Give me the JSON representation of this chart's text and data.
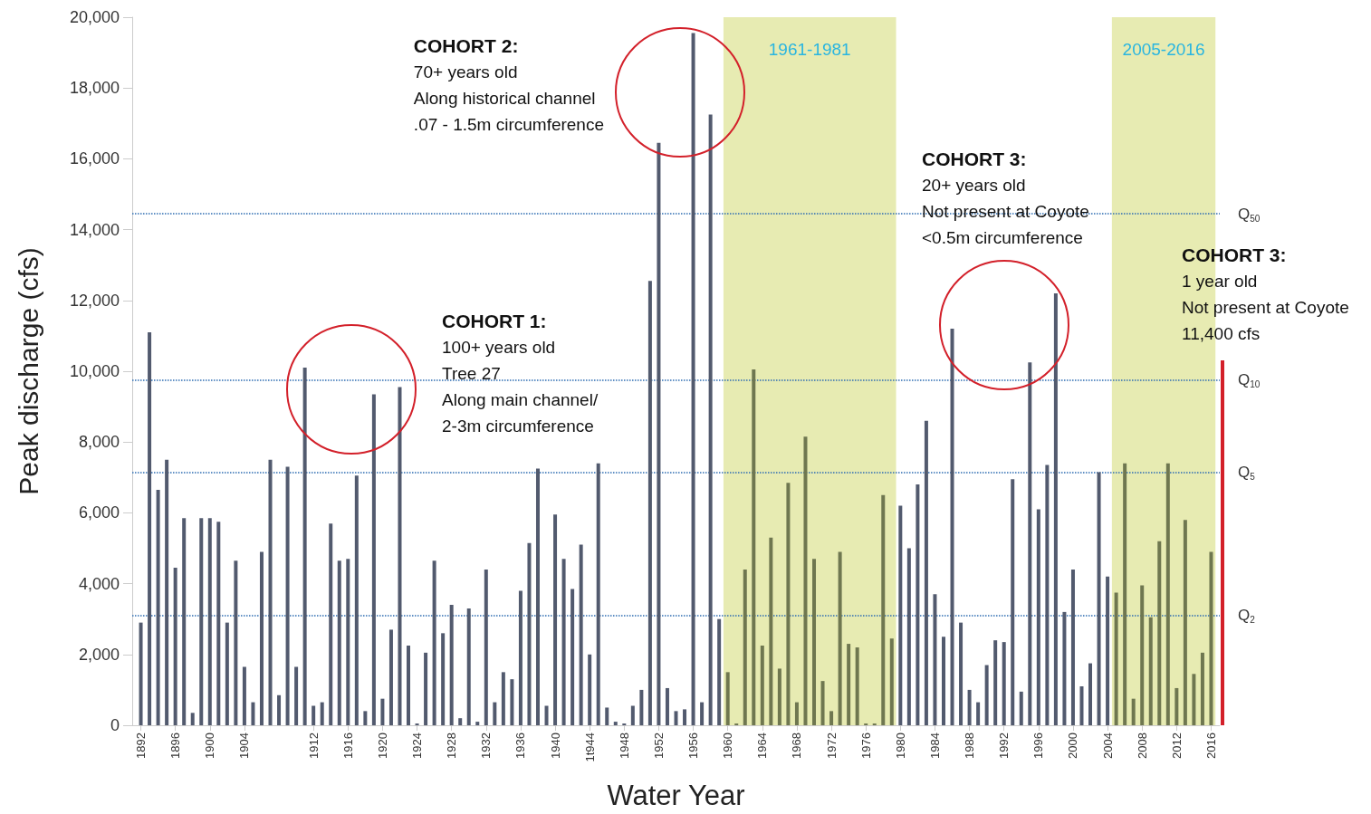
{
  "chart_data": {
    "type": "bar",
    "xlabel": "Water Year",
    "ylabel": "Peak discharge (cfs)",
    "x": [
      1892,
      1893,
      1894,
      1895,
      1896,
      1897,
      1898,
      1899,
      1900,
      1901,
      1902,
      1903,
      1904,
      1905,
      1906,
      1907,
      1908,
      1909,
      1910,
      1911,
      1912,
      1913,
      1914,
      1915,
      1916,
      1917,
      1918,
      1919,
      1920,
      1921,
      1922,
      1923,
      1924,
      1925,
      1926,
      1927,
      1928,
      1929,
      1930,
      1931,
      1932,
      1933,
      1934,
      1935,
      1936,
      1937,
      1938,
      1939,
      1940,
      1941,
      1942,
      1943,
      1944,
      1945,
      1946,
      1947,
      1948,
      1949,
      1950,
      1951,
      1952,
      1953,
      1954,
      1955,
      1956,
      1957,
      1958,
      1959,
      1960,
      1961,
      1962,
      1963,
      1964,
      1965,
      1966,
      1967,
      1968,
      1969,
      1970,
      1971,
      1972,
      1973,
      1974,
      1975,
      1976,
      1977,
      1978,
      1979,
      1980,
      1981,
      1982,
      1983,
      1984,
      1985,
      1986,
      1987,
      1988,
      1989,
      1990,
      1991,
      1992,
      1993,
      1994,
      1995,
      1996,
      1997,
      1998,
      1999,
      2000,
      2001,
      2002,
      2003,
      2004,
      2005,
      2006,
      2007,
      2008,
      2009,
      2010,
      2011,
      2012,
      2013,
      2014,
      2015,
      2016
    ],
    "values": [
      2900,
      11100,
      6650,
      7500,
      4450,
      5850,
      350,
      5850,
      5850,
      5750,
      2900,
      4650,
      1650,
      650,
      4900,
      7500,
      850,
      7300,
      1650,
      10100,
      550,
      650,
      5700,
      4650,
      4700,
      7050,
      400,
      9350,
      750,
      2700,
      9550,
      2250,
      50,
      2050,
      4650,
      2600,
      3400,
      200,
      3300,
      100,
      4400,
      650,
      1500,
      1300,
      3800,
      5150,
      7250,
      550,
      5950,
      4700,
      3850,
      5100,
      2000,
      7400,
      500,
      100,
      50,
      550,
      1000,
      12550,
      16450,
      1050,
      400,
      450,
      19550,
      650,
      17250,
      3000,
      1500,
      50,
      4400,
      10050,
      2250,
      5300,
      1600,
      6850,
      650,
      8150,
      4700,
      1250,
      400,
      4900,
      2300,
      2200,
      50,
      50,
      6500,
      2450,
      6200,
      5000,
      6800,
      8600,
      3700,
      2500,
      11200,
      2900,
      1000,
      650,
      1700,
      2400,
      2350,
      6950,
      950,
      10250,
      6100,
      7350,
      12200,
      3200,
      4400,
      1100,
      1750,
      7150,
      4200,
      3750,
      7400,
      750,
      3950,
      3050,
      5200,
      7400,
      1050,
      5800,
      1450,
      2050,
      4900
    ],
    "colors": [
      "#525a6e",
      "#525a6e",
      "#525a6e",
      "#525a6e",
      "#525a6e",
      "#525a6e",
      "#525a6e",
      "#525a6e",
      "#525a6e",
      "#525a6e",
      "#525a6e",
      "#525a6e",
      "#525a6e",
      "#525a6e",
      "#525a6e",
      "#525a6e",
      "#525a6e",
      "#525a6e",
      "#525a6e",
      "#525a6e",
      "#525a6e",
      "#525a6e",
      "#525a6e",
      "#525a6e",
      "#525a6e",
      "#525a6e",
      "#525a6e",
      "#525a6e",
      "#525a6e",
      "#525a6e",
      "#525a6e",
      "#525a6e",
      "#525a6e",
      "#525a6e",
      "#525a6e",
      "#525a6e",
      "#525a6e",
      "#525a6e",
      "#525a6e",
      "#525a6e",
      "#525a6e",
      "#525a6e",
      "#525a6e",
      "#525a6e",
      "#525a6e",
      "#525a6e",
      "#525a6e",
      "#525a6e",
      "#525a6e",
      "#525a6e",
      "#525a6e",
      "#525a6e",
      "#525a6e",
      "#525a6e",
      "#525a6e",
      "#525a6e",
      "#525a6e",
      "#525a6e",
      "#525a6e",
      "#525a6e",
      "#525a6e",
      "#525a6e",
      "#525a6e",
      "#525a6e",
      "#525a6e",
      "#525a6e",
      "#525a6e",
      "#525a6e",
      "#6f7750",
      "#6f7750",
      "#6f7750",
      "#6f7750",
      "#6f7750",
      "#6f7750",
      "#6f7750",
      "#6f7750",
      "#6f7750",
      "#6f7750",
      "#6f7750",
      "#6f7750",
      "#6f7750",
      "#6f7750",
      "#6f7750",
      "#6f7750",
      "#6f7750",
      "#6f7750",
      "#6f7750",
      "#6f7750",
      "#525a6e",
      "#525a6e",
      "#525a6e",
      "#525a6e",
      "#525a6e",
      "#525a6e",
      "#525a6e",
      "#525a6e",
      "#525a6e",
      "#525a6e",
      "#525a6e",
      "#525a6e",
      "#525a6e",
      "#525a6e",
      "#525a6e",
      "#525a6e",
      "#525a6e",
      "#525a6e",
      "#525a6e",
      "#525a6e",
      "#525a6e",
      "#525a6e",
      "#525a6e",
      "#525a6e",
      "#525a6e",
      "#6f7750",
      "#6f7750",
      "#6f7750",
      "#6f7750",
      "#6f7750",
      "#6f7750",
      "#6f7750",
      "#6f7750",
      "#6f7750",
      "#6f7750",
      "#6f7750",
      "#6f7750"
    ],
    "xlim": [
      1891,
      2017
    ],
    "xticks": [
      1892,
      1896,
      1900,
      1904,
      1912,
      1916,
      1920,
      1924,
      1928,
      1932,
      1936,
      1940,
      {
        "value": 1944,
        "label": "1t944"
      },
      1948,
      1952,
      1956,
      1960,
      1964,
      1968,
      1972,
      1976,
      1980,
      1984,
      1988,
      1992,
      1996,
      2000,
      2004,
      2008,
      2012,
      2016
    ],
    "ylim": [
      0,
      20000
    ],
    "yticks": [
      {
        "value": 0,
        "label": "0"
      },
      {
        "value": 2000,
        "label": "2,000"
      },
      {
        "value": 4000,
        "label": "4,000"
      },
      {
        "value": 6000,
        "label": "6,000"
      },
      {
        "value": 8000,
        "label": "8,000"
      },
      {
        "value": 10000,
        "label": "10,000"
      },
      {
        "value": 12000,
        "label": "12,000"
      },
      {
        "value": 14000,
        "label": "14,000"
      },
      {
        "value": 16000,
        "label": "16,000"
      },
      {
        "value": 18000,
        "label": "18,000"
      },
      {
        "value": 20000,
        "label": "20,000"
      }
    ],
    "ref_lines": [
      {
        "axis": "y",
        "value": 14450,
        "label": "Q$_{50}$",
        "color": "#2f6db3",
        "line_style": "dotted"
      },
      {
        "axis": "y",
        "value": 9750,
        "label": "Q$_{10}$",
        "color": "#2f6db3",
        "line_style": "dotted"
      },
      {
        "axis": "y",
        "value": 7150,
        "label": "Q$_{5}$",
        "color": "#2f6db3",
        "line_style": "dotted"
      },
      {
        "axis": "y",
        "value": 3100,
        "label": "Q$_{2}$",
        "color": "#2f6db3",
        "line_style": "dotted"
      }
    ],
    "bands": [
      {
        "axis": "x",
        "from": 1959.5,
        "to": 1979.5,
        "label": "1961-1981",
        "color": "#e7ebb2"
      },
      {
        "axis": "x",
        "from": 2004.5,
        "to": 2016.5,
        "label": "2005-2016",
        "color": "#e7ebb2"
      }
    ],
    "annotations": [
      "COHORT 2:\n70+ years old\nAlong historical channel\n.07 - 1.5m circumference",
      "COHORT 1:\n100+ years old\nTree 27\nAlong main channel/\n2-3m circumference",
      "COHORT 3:\n20+ years old\nNot present at Coyote\n<0.5m circumference",
      "COHORT 3:\n1 year old\nNot present at Coyote\n11,400 cfs"
    ],
    "grid": false
  }
}
